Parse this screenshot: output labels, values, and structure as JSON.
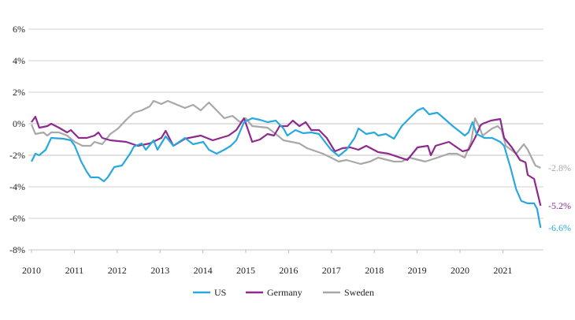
{
  "chart_data": {
    "type": "line",
    "title": "",
    "xlabel": "",
    "ylabel": "",
    "xlim": [
      2010,
      2021.9
    ],
    "ylim": [
      -8,
      6
    ],
    "grid": true,
    "legend_position": "bottom",
    "y_ticks": [
      6,
      4,
      2,
      0,
      -2,
      -4,
      -6,
      -8
    ],
    "y_tick_labels": [
      "6%",
      "4%",
      "2%",
      "0%",
      "-2%",
      "-4%",
      "-6%",
      "-8%"
    ],
    "x_ticks": [
      2010,
      2011,
      2012,
      2013,
      2014,
      2015,
      2016,
      2017,
      2018,
      2019,
      2020,
      2021
    ],
    "x_tick_labels": [
      "2010",
      "2011",
      "2012",
      "2013",
      "2014",
      "2015",
      "2016",
      "2017",
      "2018",
      "2019",
      "2020",
      "2021"
    ],
    "series": [
      {
        "name": "US",
        "color": "#29a8e0",
        "end_label": "-6.6%",
        "x": [
          2010.0,
          2010.09,
          2010.18,
          2010.33,
          2010.46,
          2010.74,
          2010.92,
          2011.01,
          2011.16,
          2011.29,
          2011.38,
          2011.56,
          2011.69,
          2011.78,
          2011.93,
          2012.11,
          2012.3,
          2012.39,
          2012.57,
          2012.67,
          2012.85,
          2012.94,
          2013.13,
          2013.31,
          2013.58,
          2013.77,
          2014.01,
          2014.14,
          2014.32,
          2014.5,
          2014.65,
          2014.78,
          2014.96,
          2015.15,
          2015.33,
          2015.51,
          2015.7,
          2015.88,
          2015.97,
          2016.16,
          2016.34,
          2016.53,
          2016.71,
          2016.89,
          2016.99,
          2017.17,
          2017.35,
          2017.54,
          2017.63,
          2017.81,
          2018.0,
          2018.09,
          2018.27,
          2018.46,
          2018.64,
          2018.82,
          2019.01,
          2019.14,
          2019.28,
          2019.47,
          2019.56,
          2019.83,
          2020.02,
          2020.11,
          2020.2,
          2020.29,
          2020.39,
          2020.57,
          2020.75,
          2020.94,
          2021.03,
          2021.18,
          2021.31,
          2021.43,
          2021.58,
          2021.73,
          2021.8,
          2021.88
        ],
        "values": [
          -2.4,
          -1.9,
          -2.0,
          -1.65,
          -0.9,
          -0.95,
          -1.05,
          -1.4,
          -2.4,
          -3.05,
          -3.4,
          -3.4,
          -3.65,
          -3.4,
          -2.75,
          -2.65,
          -1.9,
          -1.45,
          -1.25,
          -1.65,
          -1.05,
          -1.65,
          -0.8,
          -1.4,
          -0.9,
          -1.3,
          -1.15,
          -1.65,
          -1.9,
          -1.65,
          -1.4,
          -1.05,
          0.1,
          0.35,
          0.25,
          0.1,
          0.2,
          -0.3,
          -0.75,
          -0.4,
          -0.6,
          -0.55,
          -0.65,
          -1.3,
          -1.65,
          -2.05,
          -1.65,
          -0.9,
          -0.3,
          -0.65,
          -0.55,
          -0.75,
          -0.65,
          -0.95,
          -0.15,
          0.35,
          0.85,
          1.0,
          0.6,
          0.7,
          0.5,
          -0.15,
          -0.55,
          -0.75,
          -0.55,
          0.1,
          -0.65,
          -0.9,
          -0.9,
          -1.15,
          -1.4,
          -2.8,
          -4.15,
          -4.9,
          -5.05,
          -5.05,
          -5.4,
          -6.6
        ]
      },
      {
        "name": "Germany",
        "color": "#8e2a8e",
        "end_label": "-5.2%",
        "x": [
          2010.0,
          2010.09,
          2010.18,
          2010.37,
          2010.46,
          2010.64,
          2010.83,
          2010.92,
          2011.1,
          2011.29,
          2011.47,
          2011.56,
          2011.65,
          2011.84,
          2012.21,
          2012.48,
          2012.76,
          2013.03,
          2013.13,
          2013.31,
          2013.58,
          2013.95,
          2014.23,
          2014.6,
          2014.78,
          2014.96,
          2015.15,
          2015.33,
          2015.51,
          2015.66,
          2015.79,
          2015.97,
          2016.1,
          2016.25,
          2016.4,
          2016.53,
          2016.71,
          2016.89,
          2017.08,
          2017.26,
          2017.44,
          2017.63,
          2017.81,
          2018.09,
          2018.33,
          2018.77,
          2019.01,
          2019.25,
          2019.32,
          2019.43,
          2019.74,
          2020.06,
          2020.2,
          2020.35,
          2020.48,
          2020.53,
          2020.72,
          2020.94,
          2021.03,
          2021.21,
          2021.4,
          2021.53,
          2021.58,
          2021.73,
          2021.88
        ],
        "values": [
          0.1,
          0.45,
          -0.25,
          -0.15,
          0.0,
          -0.25,
          -0.55,
          -0.4,
          -0.9,
          -0.9,
          -0.75,
          -0.55,
          -0.9,
          -1.05,
          -1.15,
          -1.4,
          -1.25,
          -0.9,
          -0.45,
          -1.4,
          -0.95,
          -0.75,
          -1.05,
          -0.75,
          -0.4,
          0.35,
          -1.15,
          -1.0,
          -0.65,
          -0.75,
          -0.15,
          -0.15,
          0.2,
          -0.15,
          0.1,
          -0.4,
          -0.4,
          -0.9,
          -1.75,
          -1.55,
          -1.5,
          -1.65,
          -1.4,
          -1.8,
          -1.9,
          -2.3,
          -1.5,
          -1.4,
          -2.0,
          -1.4,
          -1.15,
          -1.75,
          -1.65,
          -0.9,
          -0.1,
          0.0,
          0.2,
          0.3,
          -0.9,
          -1.5,
          -2.3,
          -2.45,
          -3.25,
          -3.5,
          -5.2
        ]
      },
      {
        "name": "Sweden",
        "color": "#a8a8a8",
        "end_label": "-2.8%",
        "x": [
          2010.0,
          2010.09,
          2010.28,
          2010.37,
          2010.46,
          2010.64,
          2010.83,
          2011.01,
          2011.19,
          2011.38,
          2011.47,
          2011.65,
          2011.84,
          2012.02,
          2012.21,
          2012.39,
          2012.57,
          2012.76,
          2012.85,
          2013.03,
          2013.18,
          2013.4,
          2013.58,
          2013.77,
          2013.95,
          2014.14,
          2014.32,
          2014.5,
          2014.69,
          2014.87,
          2015.0,
          2015.15,
          2015.51,
          2015.7,
          2015.88,
          2016.25,
          2016.43,
          2016.8,
          2016.99,
          2017.17,
          2017.35,
          2017.68,
          2017.9,
          2018.09,
          2018.46,
          2018.64,
          2018.82,
          2019.19,
          2019.47,
          2019.74,
          2019.93,
          2020.11,
          2020.26,
          2020.35,
          2020.44,
          2020.53,
          2020.75,
          2020.88,
          2020.97,
          2021.07,
          2021.31,
          2021.49,
          2021.58,
          2021.76,
          2021.88
        ],
        "values": [
          -0.05,
          -0.65,
          -0.55,
          -0.75,
          -0.55,
          -0.55,
          -0.75,
          -1.15,
          -1.4,
          -1.4,
          -1.15,
          -1.3,
          -0.65,
          -0.3,
          0.25,
          0.7,
          0.85,
          1.1,
          1.45,
          1.25,
          1.45,
          1.2,
          1.0,
          1.2,
          0.85,
          1.35,
          0.85,
          0.35,
          0.5,
          0.1,
          0.35,
          -0.15,
          -0.25,
          -0.65,
          -1.05,
          -1.25,
          -1.55,
          -1.9,
          -2.15,
          -2.4,
          -2.3,
          -2.55,
          -2.4,
          -2.15,
          -2.4,
          -2.4,
          -2.15,
          -2.4,
          -2.15,
          -1.9,
          -1.9,
          -2.15,
          -1.15,
          0.35,
          -0.15,
          -0.75,
          -0.3,
          -0.15,
          -0.4,
          -1.4,
          -1.9,
          -1.3,
          -1.65,
          -2.65,
          -2.8
        ]
      }
    ]
  }
}
